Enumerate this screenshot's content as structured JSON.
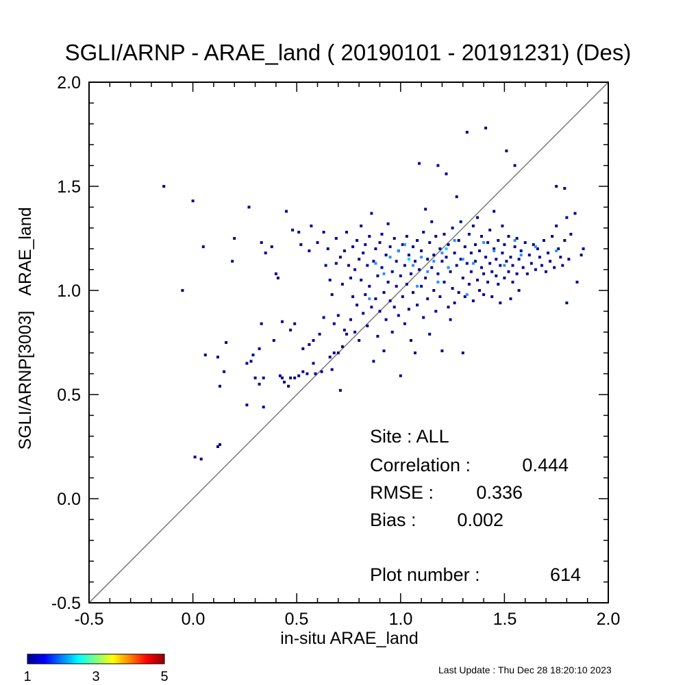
{
  "chart_data": {
    "type": "scatter",
    "title": "SGLI/ARNP - ARAE_land ( 20190101 - 20191231) (Des)",
    "xlabel": "in-situ ARAE_land",
    "ylabel_main": "SGLI/ARNP[3003]",
    "ylabel_secondary": "ARAE_land",
    "xlim": [
      -0.5,
      2.0
    ],
    "ylim": [
      -0.5,
      2.0
    ],
    "xticks": [
      "-0.5",
      "0.0",
      "0.5",
      "1.0",
      "1.5",
      "2.0"
    ],
    "yticks": [
      "-0.5",
      "0.0",
      "0.5",
      "1.0",
      "1.5",
      "2.0"
    ],
    "reference_line": "1:1",
    "stats": {
      "site": "Site : ALL",
      "correlation_label": "Correlation :",
      "correlation_value": "0.444",
      "rmse_label": "RMSE :",
      "rmse_value": "0.336",
      "bias_label": "Bias :",
      "bias_value": "0.002",
      "plot_number_label": "Plot number :",
      "plot_number_value": "614"
    },
    "colorbar": {
      "labels": [
        "1",
        "3",
        "5"
      ],
      "range": [
        1,
        5
      ],
      "colormap": "jet"
    },
    "colors": {
      "count_1": "#00008f",
      "count_2": "#2a8fff",
      "count_3": "#00d0ff"
    },
    "points": [
      [
        -0.14,
        1.5,
        1
      ],
      [
        -0.05,
        1.0,
        1
      ],
      [
        0.0,
        1.43,
        1
      ],
      [
        0.01,
        0.2,
        1
      ],
      [
        0.04,
        0.19,
        1
      ],
      [
        0.05,
        1.21,
        1
      ],
      [
        0.06,
        0.69,
        1
      ],
      [
        0.12,
        0.25,
        1
      ],
      [
        0.13,
        0.26,
        1
      ],
      [
        0.12,
        0.68,
        1
      ],
      [
        0.13,
        0.54,
        1
      ],
      [
        0.15,
        0.61,
        1
      ],
      [
        0.16,
        0.75,
        1
      ],
      [
        0.19,
        1.14,
        1
      ],
      [
        0.2,
        1.25,
        1
      ],
      [
        0.26,
        0.45,
        1
      ],
      [
        0.26,
        0.65,
        1
      ],
      [
        0.27,
        1.4,
        1
      ],
      [
        0.28,
        0.66,
        1
      ],
      [
        0.29,
        0.69,
        1
      ],
      [
        0.3,
        0.58,
        1
      ],
      [
        0.32,
        0.72,
        1
      ],
      [
        0.32,
        0.55,
        1
      ],
      [
        0.33,
        0.84,
        1
      ],
      [
        0.33,
        1.23,
        1
      ],
      [
        0.34,
        0.58,
        1
      ],
      [
        0.34,
        0.44,
        1
      ],
      [
        0.35,
        1.18,
        1
      ],
      [
        0.38,
        1.21,
        1
      ],
      [
        0.39,
        0.76,
        1
      ],
      [
        0.4,
        1.08,
        1
      ],
      [
        0.41,
        1.06,
        1
      ],
      [
        0.42,
        0.59,
        1
      ],
      [
        0.43,
        0.58,
        1
      ],
      [
        0.43,
        0.85,
        1
      ],
      [
        0.44,
        0.56,
        1
      ],
      [
        0.45,
        1.38,
        1
      ],
      [
        0.46,
        0.54,
        1
      ],
      [
        0.47,
        0.81,
        1
      ],
      [
        0.47,
        0.58,
        1
      ],
      [
        0.48,
        1.29,
        1
      ],
      [
        0.49,
        0.58,
        1
      ],
      [
        0.49,
        0.84,
        1
      ],
      [
        0.51,
        0.59,
        1
      ],
      [
        0.51,
        1.28,
        1
      ],
      [
        0.52,
        1.22,
        1
      ],
      [
        0.53,
        0.61,
        1
      ],
      [
        0.53,
        0.72,
        1
      ],
      [
        0.55,
        0.6,
        1
      ],
      [
        0.56,
        1.19,
        1
      ],
      [
        0.56,
        0.74,
        1
      ],
      [
        0.57,
        1.31,
        1
      ],
      [
        0.58,
        0.76,
        1
      ],
      [
        0.58,
        0.65,
        1
      ],
      [
        0.59,
        0.6,
        1
      ],
      [
        0.6,
        1.23,
        1
      ],
      [
        0.61,
        0.79,
        1
      ],
      [
        0.62,
        0.61,
        1
      ],
      [
        0.63,
        1.28,
        1
      ],
      [
        0.63,
        0.87,
        1
      ],
      [
        0.64,
        1.12,
        1
      ],
      [
        0.65,
        1.2,
        1
      ],
      [
        0.66,
        0.68,
        1
      ],
      [
        0.66,
        1.05,
        1
      ],
      [
        0.67,
        0.98,
        1
      ],
      [
        0.67,
        0.62,
        1
      ],
      [
        0.68,
        0.7,
        1
      ],
      [
        0.68,
        0.84,
        1
      ],
      [
        0.69,
        1.13,
        1
      ],
      [
        0.69,
        1.25,
        1
      ],
      [
        0.7,
        0.88,
        1
      ],
      [
        0.7,
        0.7,
        1
      ],
      [
        0.71,
        0.52,
        1
      ],
      [
        0.71,
        1.16,
        1
      ],
      [
        0.72,
        1.03,
        1
      ],
      [
        0.72,
        0.73,
        1
      ],
      [
        0.73,
        0.81,
        1
      ],
      [
        0.73,
        1.19,
        1
      ],
      [
        0.74,
        0.79,
        1
      ],
      [
        0.74,
        1.28,
        1
      ],
      [
        0.75,
        1.12,
        1
      ],
      [
        0.76,
        0.86,
        1
      ],
      [
        0.76,
        1.06,
        1
      ],
      [
        0.77,
        0.97,
        1
      ],
      [
        0.77,
        1.21,
        1
      ],
      [
        0.78,
        0.8,
        1
      ],
      [
        0.78,
        1.1,
        1
      ],
      [
        0.79,
        1.24,
        1
      ],
      [
        0.79,
        0.93,
        1
      ],
      [
        0.8,
        1.15,
        1
      ],
      [
        0.8,
        0.76,
        1
      ],
      [
        0.81,
        1.05,
        1
      ],
      [
        0.81,
        1.31,
        1
      ],
      [
        0.82,
        0.89,
        1
      ],
      [
        0.82,
        1.18,
        1
      ],
      [
        0.83,
        0.98,
        1
      ],
      [
        0.83,
        1.22,
        1
      ],
      [
        0.84,
        1.12,
        1
      ],
      [
        0.84,
        0.83,
        1
      ],
      [
        0.85,
        1.02,
        1
      ],
      [
        0.85,
        1.26,
        1
      ],
      [
        0.86,
        0.92,
        1
      ],
      [
        0.86,
        1.37,
        1
      ],
      [
        0.87,
        0.66,
        1
      ],
      [
        0.87,
        1.14,
        1
      ],
      [
        0.88,
        0.96,
        1
      ],
      [
        0.88,
        1.2,
        1
      ],
      [
        0.89,
        1.07,
        1
      ],
      [
        0.89,
        0.78,
        1
      ],
      [
        0.9,
        1.23,
        1
      ],
      [
        0.9,
        0.9,
        1
      ],
      [
        0.91,
        1.11,
        1
      ],
      [
        0.91,
        1.27,
        1
      ],
      [
        0.92,
        0.99,
        1
      ],
      [
        0.92,
        0.71,
        1
      ],
      [
        0.93,
        1.17,
        1
      ],
      [
        0.93,
        0.86,
        1
      ],
      [
        0.94,
        1.04,
        1
      ],
      [
        0.94,
        1.32,
        1
      ],
      [
        0.95,
        0.95,
        1
      ],
      [
        0.95,
        1.21,
        1
      ],
      [
        0.96,
        1.09,
        1
      ],
      [
        0.96,
        0.8,
        1
      ],
      [
        0.97,
        1.25,
        1
      ],
      [
        0.97,
        0.92,
        1
      ],
      [
        0.98,
        1.14,
        1
      ],
      [
        0.98,
        1.02,
        1
      ],
      [
        0.99,
        1.19,
        1
      ],
      [
        0.99,
        0.88,
        1
      ],
      [
        1.0,
        1.07,
        1
      ],
      [
        1.0,
        0.59,
        1
      ],
      [
        1.01,
        1.22,
        1
      ],
      [
        1.01,
        0.97,
        1
      ],
      [
        1.02,
        1.12,
        1
      ],
      [
        1.02,
        0.84,
        1
      ],
      [
        1.03,
        1.26,
        1
      ],
      [
        1.03,
        1.03,
        1
      ],
      [
        1.04,
        0.91,
        1
      ],
      [
        1.04,
        1.17,
        1
      ],
      [
        1.05,
        1.08,
        1
      ],
      [
        1.05,
        0.76,
        1
      ],
      [
        1.06,
        1.21,
        1
      ],
      [
        1.06,
        0.99,
        1
      ],
      [
        1.07,
        1.14,
        1
      ],
      [
        1.07,
        0.7,
        1
      ],
      [
        1.08,
        1.24,
        1
      ],
      [
        1.08,
        0.93,
        1
      ],
      [
        1.09,
        1.1,
        1
      ],
      [
        1.09,
        1.61,
        1
      ],
      [
        1.1,
        1.02,
        1
      ],
      [
        1.1,
        1.19,
        1
      ],
      [
        1.11,
        0.87,
        1
      ],
      [
        1.11,
        1.28,
        1
      ],
      [
        1.12,
        1.06,
        1
      ],
      [
        1.12,
        1.39,
        1
      ],
      [
        1.13,
        1.15,
        1
      ],
      [
        1.13,
        0.96,
        1
      ],
      [
        1.14,
        1.23,
        1
      ],
      [
        1.14,
        0.79,
        1
      ],
      [
        1.15,
        1.11,
        1
      ],
      [
        1.15,
        1.33,
        1
      ],
      [
        1.16,
        1.0,
        1
      ],
      [
        1.16,
        1.17,
        1
      ],
      [
        1.17,
        0.9,
        1
      ],
      [
        1.17,
        1.26,
        1
      ],
      [
        1.18,
        1.08,
        1
      ],
      [
        1.18,
        1.6,
        1
      ],
      [
        1.19,
        1.2,
        1
      ],
      [
        1.19,
        0.97,
        1
      ],
      [
        1.2,
        1.14,
        1
      ],
      [
        1.2,
        0.71,
        1
      ],
      [
        1.21,
        1.27,
        1
      ],
      [
        1.21,
        1.04,
        1
      ],
      [
        1.22,
        1.16,
        1
      ],
      [
        1.22,
        1.56,
        1
      ],
      [
        1.23,
        0.92,
        1
      ],
      [
        1.23,
        1.22,
        1
      ],
      [
        1.24,
        1.09,
        1
      ],
      [
        1.24,
        0.86,
        1
      ],
      [
        1.25,
        1.3,
        1
      ],
      [
        1.25,
        1.01,
        1
      ],
      [
        1.26,
        1.18,
        1
      ],
      [
        1.26,
        0.94,
        1
      ],
      [
        1.27,
        1.12,
        1
      ],
      [
        1.27,
        1.45,
        1
      ],
      [
        1.28,
        1.24,
        1
      ],
      [
        1.28,
        0.99,
        1
      ],
      [
        1.29,
        1.15,
        1
      ],
      [
        1.29,
        1.33,
        1
      ],
      [
        1.3,
        1.06,
        1
      ],
      [
        1.3,
        0.7,
        1
      ],
      [
        1.31,
        1.21,
        1
      ],
      [
        1.31,
        0.97,
        1
      ],
      [
        1.32,
        1.13,
        1
      ],
      [
        1.32,
        1.76,
        1
      ],
      [
        1.33,
        1.27,
        1
      ],
      [
        1.33,
        1.03,
        1
      ],
      [
        1.34,
        1.18,
        1
      ],
      [
        1.34,
        1.09,
        1
      ],
      [
        1.35,
        1.31,
        1
      ],
      [
        1.35,
        0.95,
        1
      ],
      [
        1.36,
        1.14,
        1
      ],
      [
        1.36,
        1.22,
        1
      ],
      [
        1.37,
        1.05,
        1
      ],
      [
        1.37,
        1.35,
        1
      ],
      [
        1.38,
        1.19,
        1
      ],
      [
        1.38,
        1.0,
        1
      ],
      [
        1.39,
        1.11,
        1
      ],
      [
        1.39,
        1.26,
        1
      ],
      [
        1.4,
        1.08,
        1
      ],
      [
        1.4,
        0.98,
        1
      ],
      [
        1.41,
        1.78,
        1
      ],
      [
        1.41,
        1.16,
        1
      ],
      [
        1.42,
        1.23,
        1
      ],
      [
        1.42,
        1.04,
        1
      ],
      [
        1.43,
        1.13,
        1
      ],
      [
        1.43,
        1.29,
        1
      ],
      [
        1.44,
        1.09,
        1
      ],
      [
        1.44,
        0.97,
        1
      ],
      [
        1.45,
        1.2,
        1
      ],
      [
        1.45,
        1.38,
        1
      ],
      [
        1.46,
        1.07,
        1
      ],
      [
        1.46,
        1.15,
        1
      ],
      [
        1.47,
        1.24,
        1
      ],
      [
        1.47,
        1.03,
        1
      ],
      [
        1.48,
        1.12,
        1
      ],
      [
        1.48,
        0.94,
        1
      ],
      [
        1.49,
        1.18,
        1
      ],
      [
        1.49,
        1.31,
        1
      ],
      [
        1.5,
        1.06,
        1
      ],
      [
        1.5,
        1.22,
        1
      ],
      [
        1.51,
        1.14,
        1
      ],
      [
        1.51,
        1.67,
        1
      ],
      [
        1.52,
        1.09,
        1
      ],
      [
        1.52,
        1.26,
        1
      ],
      [
        1.53,
        1.16,
        1
      ],
      [
        1.53,
        0.96,
        1
      ],
      [
        1.54,
        1.12,
        1
      ],
      [
        1.54,
        1.04,
        1
      ],
      [
        1.55,
        1.21,
        1
      ],
      [
        1.55,
        1.6,
        1
      ],
      [
        1.56,
        1.08,
        1
      ],
      [
        1.56,
        1.25,
        1
      ],
      [
        1.57,
        1.15,
        1
      ],
      [
        1.57,
        1.0,
        1
      ],
      [
        1.58,
        1.19,
        1
      ],
      [
        1.59,
        1.11,
        1
      ],
      [
        1.6,
        1.23,
        1
      ],
      [
        1.61,
        1.08,
        1
      ],
      [
        1.62,
        1.17,
        1
      ],
      [
        1.63,
        1.13,
        1
      ],
      [
        1.64,
        1.22,
        1
      ],
      [
        1.65,
        1.1,
        1
      ],
      [
        1.66,
        1.2,
        1
      ],
      [
        1.67,
        1.16,
        1
      ],
      [
        1.68,
        1.12,
        1
      ],
      [
        1.69,
        1.24,
        1
      ],
      [
        1.7,
        1.09,
        1
      ],
      [
        1.71,
        1.18,
        1
      ],
      [
        1.72,
        1.14,
        1
      ],
      [
        1.73,
        1.26,
        1
      ],
      [
        1.74,
        1.11,
        1
      ],
      [
        1.75,
        1.5,
        1
      ],
      [
        1.75,
        1.31,
        1
      ],
      [
        1.76,
        1.2,
        1
      ],
      [
        1.77,
        1.16,
        1
      ],
      [
        1.78,
        1.12,
        1
      ],
      [
        1.79,
        1.49,
        1
      ],
      [
        1.79,
        1.24,
        1
      ],
      [
        1.8,
        1.35,
        1
      ],
      [
        1.8,
        0.94,
        1
      ],
      [
        1.81,
        1.15,
        1
      ],
      [
        1.82,
        1.27,
        1
      ],
      [
        1.84,
        1.37,
        1
      ],
      [
        1.85,
        1.04,
        1
      ],
      [
        1.87,
        1.17,
        1
      ],
      [
        1.88,
        1.2,
        1
      ],
      [
        0.88,
        1.13,
        2
      ],
      [
        0.92,
        1.08,
        2
      ],
      [
        0.95,
        1.16,
        2
      ],
      [
        0.99,
        1.19,
        2
      ],
      [
        1.02,
        1.22,
        2
      ],
      [
        1.06,
        1.12,
        2
      ],
      [
        1.1,
        1.16,
        2
      ],
      [
        1.13,
        1.09,
        2
      ],
      [
        1.16,
        1.14,
        2
      ],
      [
        1.2,
        1.18,
        2
      ],
      [
        1.23,
        1.11,
        2
      ],
      [
        1.26,
        1.24,
        2
      ],
      [
        1.3,
        1.15,
        2
      ],
      [
        1.35,
        1.13,
        2
      ],
      [
        1.4,
        1.23,
        2
      ],
      [
        1.45,
        1.19,
        2
      ],
      [
        1.5,
        1.12,
        2
      ],
      [
        1.58,
        1.17,
        2
      ],
      [
        1.65,
        1.21,
        2
      ],
      [
        1.75,
        1.19,
        2
      ],
      [
        0.85,
        0.96,
        2
      ],
      [
        1.08,
        1.02,
        2
      ],
      [
        1.18,
        1.04,
        2
      ],
      [
        1.32,
        0.98,
        2
      ],
      [
        1.55,
        1.24,
        2
      ],
      [
        1.04,
        1.15,
        3
      ],
      [
        1.22,
        1.2,
        3
      ]
    ]
  },
  "footer": {
    "last_update": "Last Update : Thu Dec 28 18:20:10 2023"
  }
}
